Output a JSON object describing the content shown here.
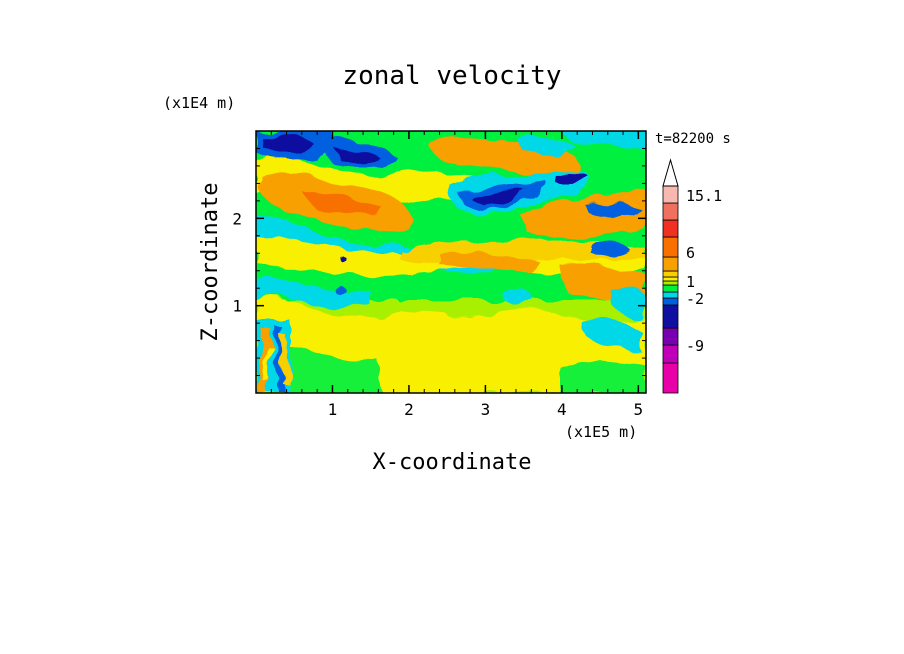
{
  "chart_data": {
    "type": "heatmap",
    "title": "zonal velocity",
    "time_label": "t=82200 s",
    "xlabel": "X-coordinate",
    "ylabel": "Z-coordinate",
    "x_scale_label": "(x1E5 m)",
    "y_scale_label": "(x1E4 m)",
    "xlim": [
      0,
      5.1
    ],
    "ylim": [
      0,
      3.0
    ],
    "x_ticks": [
      "1",
      "2",
      "3",
      "4",
      "5"
    ],
    "y_ticks": [
      "1",
      "2"
    ],
    "colorbar": {
      "levels_low_to_high": [
        {
          "color": "#e800a8"
        },
        {
          "color": "#c000b8"
        },
        {
          "color": "#7800b0"
        },
        {
          "color": "#1010a0"
        },
        {
          "color": "#0060e0"
        },
        {
          "color": "#00d8e8"
        },
        {
          "color": "#00f040"
        },
        {
          "color": "#a8f000"
        },
        {
          "color": "#f8f000"
        },
        {
          "color": "#f8d000"
        },
        {
          "color": "#f8a000"
        },
        {
          "color": "#f87000"
        },
        {
          "color": "#f03020"
        },
        {
          "color": "#f07060"
        },
        {
          "color": "#f8b8b0"
        }
      ],
      "labels": [
        "15.1",
        "6",
        "1",
        "-2",
        "-9"
      ],
      "extend_max_arrow": true
    },
    "grid": false,
    "note_values": "Field values are qualitative bands of the contour fill; dominant background near 0 (green/yellow), positive bands (orange) and negative bands (blue) in the upper half."
  }
}
